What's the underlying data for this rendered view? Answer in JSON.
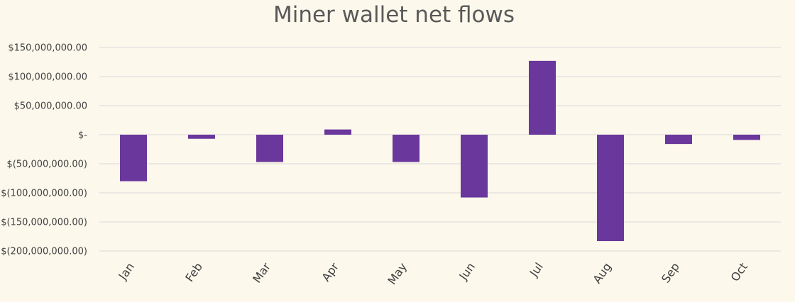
{
  "chart_data": {
    "type": "bar",
    "title": "Miner wallet net flows",
    "xlabel": "",
    "ylabel": "",
    "categories": [
      "Jan",
      "Feb",
      "Mar",
      "Apr",
      "May",
      "Jun",
      "Jul",
      "Aug",
      "Sep",
      "Oct"
    ],
    "series": [
      {
        "values": [
          -80000000,
          -7000000,
          -47000000,
          9000000,
          -47000000,
          -108000000,
          127000000,
          -183000000,
          -16000000,
          -9000000
        ]
      }
    ],
    "ylim": [
      -200000000,
      150000000
    ],
    "yticks": [
      150000000,
      100000000,
      50000000,
      0,
      -50000000,
      -100000000,
      -150000000,
      -200000000
    ],
    "ytick_labels": [
      "$150,000,000.00",
      "$100,000,000.00",
      "$50,000,000.00",
      "$-",
      "$(50,000,000.00)",
      "$(100,000,000.00)",
      "$(150,000,000.00)",
      "$(200,000,000.00)"
    ],
    "grid": true,
    "legend": "none",
    "colors": {
      "bar": "#6a379c",
      "grid": "#d9d9d9",
      "background": "#fdf8ec",
      "text": "#404040"
    }
  }
}
